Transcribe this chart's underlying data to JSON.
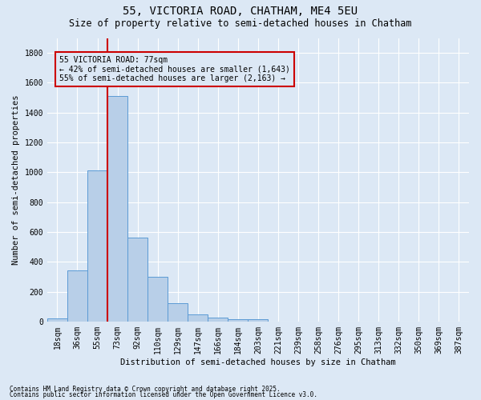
{
  "title1": "55, VICTORIA ROAD, CHATHAM, ME4 5EU",
  "title2": "Size of property relative to semi-detached houses in Chatham",
  "xlabel": "Distribution of semi-detached houses by size in Chatham",
  "ylabel": "Number of semi-detached properties",
  "footnote1": "Contains HM Land Registry data © Crown copyright and database right 2025.",
  "footnote2": "Contains public sector information licensed under the Open Government Licence v3.0.",
  "bar_labels": [
    "18sqm",
    "36sqm",
    "55sqm",
    "73sqm",
    "92sqm",
    "110sqm",
    "129sqm",
    "147sqm",
    "166sqm",
    "184sqm",
    "203sqm",
    "221sqm",
    "239sqm",
    "258sqm",
    "276sqm",
    "295sqm",
    "313sqm",
    "332sqm",
    "350sqm",
    "369sqm",
    "387sqm"
  ],
  "bar_values": [
    20,
    340,
    1010,
    1510,
    560,
    300,
    120,
    45,
    25,
    15,
    15,
    0,
    0,
    0,
    0,
    0,
    0,
    0,
    0,
    0,
    0
  ],
  "bar_color": "#b8cfe8",
  "bar_edgecolor": "#5b9bd5",
  "ylim": [
    0,
    1900
  ],
  "yticks": [
    0,
    200,
    400,
    600,
    800,
    1000,
    1200,
    1400,
    1600,
    1800
  ],
  "vline_x_index": 3,
  "vline_color": "#cc0000",
  "annotation_title": "55 VICTORIA ROAD: 77sqm",
  "annotation_line1": "← 42% of semi-detached houses are smaller (1,643)",
  "annotation_line2": "55% of semi-detached houses are larger (2,163) →",
  "annotation_box_edgecolor": "#cc0000",
  "bg_color": "#dce8f5",
  "grid_color": "#ffffff",
  "title1_fontsize": 10,
  "title2_fontsize": 8.5,
  "ylabel_fontsize": 7.5,
  "xlabel_fontsize": 7.5,
  "tick_fontsize": 7,
  "footnote_fontsize": 5.5,
  "annot_fontsize": 7
}
